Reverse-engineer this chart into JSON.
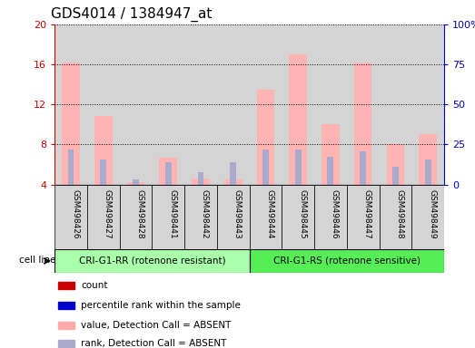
{
  "title": "GDS4014 / 1384947_at",
  "samples": [
    "GSM498426",
    "GSM498427",
    "GSM498428",
    "GSM498441",
    "GSM498442",
    "GSM498443",
    "GSM498444",
    "GSM498445",
    "GSM498446",
    "GSM498447",
    "GSM498448",
    "GSM498449"
  ],
  "pink_values": [
    16.2,
    10.8,
    4.2,
    6.7,
    4.6,
    4.5,
    13.5,
    17.0,
    10.0,
    16.2,
    8.0,
    9.0
  ],
  "blue_rank_values": [
    7.5,
    6.5,
    4.5,
    6.2,
    5.2,
    6.2,
    7.5,
    7.5,
    6.8,
    7.3,
    5.8,
    6.5
  ],
  "ylim_left": [
    4,
    20
  ],
  "ylim_right": [
    0,
    100
  ],
  "yticks_left": [
    4,
    8,
    12,
    16,
    20
  ],
  "yticks_right": [
    0,
    25,
    50,
    75,
    100
  ],
  "group1_label": "CRI-G1-RR (rotenone resistant)",
  "group2_label": "CRI-G1-RS (rotenone sensitive)",
  "cell_line_label": "cell line",
  "legend_entries": [
    {
      "color": "#cc0000",
      "marker": "s",
      "label": "count"
    },
    {
      "color": "#0000cc",
      "marker": "s",
      "label": "percentile rank within the sample"
    },
    {
      "color": "#ffaaaa",
      "marker": "s",
      "label": "value, Detection Call = ABSENT"
    },
    {
      "color": "#aaaacc",
      "marker": "s",
      "label": "rank, Detection Call = ABSENT"
    }
  ],
  "pink_color": "#ffb3b3",
  "blue_color": "#aaaacc",
  "title_fontsize": 11,
  "axis_color_left": "#cc0000",
  "axis_color_right": "#0000cc",
  "col_bg_color": "#d4d4d4",
  "group1_bg": "#aaffaa",
  "group2_bg": "#55ee55"
}
